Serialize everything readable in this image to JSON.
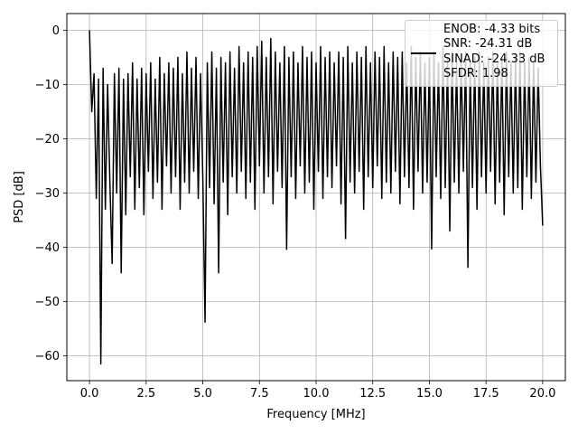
{
  "chart_data": {
    "type": "line",
    "x_label": "Frequency [MHz]",
    "y_label": "PSD [dB]",
    "xlim": [
      -1,
      21
    ],
    "ylim": [
      -64.58,
      3.08
    ],
    "xticks": [
      {
        "value": 0,
        "label": "0.0"
      },
      2.5,
      {
        "value": 5,
        "label": "5.0"
      },
      7.5,
      {
        "value": 10,
        "label": "10.0"
      },
      12.5,
      {
        "value": 15,
        "label": "15.0"
      },
      17.5,
      {
        "value": 20,
        "label": "20.0"
      }
    ],
    "yticks": [
      0,
      {
        "value": -10,
        "label": "−10"
      },
      {
        "value": -20,
        "label": "−20"
      },
      {
        "value": -30,
        "label": "−30"
      },
      {
        "value": -40,
        "label": "−40"
      },
      {
        "value": -50,
        "label": "−50"
      },
      {
        "value": -60,
        "label": "−60"
      }
    ],
    "grid": true,
    "legend_position": "upper-right",
    "x": [
      0,
      0.1,
      0.2,
      0.3,
      0.4,
      0.5,
      0.6,
      0.7,
      0.8,
      0.9,
      1,
      1.1,
      1.2,
      1.3,
      1.4,
      1.5,
      1.6,
      1.7,
      1.8,
      1.9,
      2,
      2.1,
      2.2,
      2.3,
      2.4,
      2.5,
      2.6,
      2.7,
      2.8,
      2.9,
      3,
      3.1,
      3.2,
      3.3,
      3.4,
      3.5,
      3.6,
      3.7,
      3.8,
      3.9,
      4,
      4.1,
      4.2,
      4.3,
      4.4,
      4.5,
      4.6,
      4.7,
      4.8,
      4.9,
      5,
      5.1,
      5.2,
      5.3,
      5.4,
      5.5,
      5.6,
      5.7,
      5.8,
      5.9,
      6,
      6.1,
      6.2,
      6.3,
      6.4,
      6.5,
      6.6,
      6.7,
      6.8,
      6.9,
      7,
      7.1,
      7.2,
      7.3,
      7.4,
      7.5,
      7.6,
      7.7,
      7.8,
      7.9,
      8,
      8.1,
      8.2,
      8.3,
      8.4,
      8.5,
      8.6,
      8.7,
      8.8,
      8.9,
      9,
      9.1,
      9.2,
      9.3,
      9.4,
      9.5,
      9.6,
      9.7,
      9.8,
      9.9,
      10,
      10.1,
      10.2,
      10.3,
      10.4,
      10.5,
      10.6,
      10.7,
      10.8,
      10.9,
      11,
      11.1,
      11.2,
      11.3,
      11.4,
      11.5,
      11.6,
      11.7,
      11.8,
      11.9,
      12,
      12.1,
      12.2,
      12.3,
      12.4,
      12.5,
      12.6,
      12.7,
      12.8,
      12.9,
      13,
      13.1,
      13.2,
      13.3,
      13.4,
      13.5,
      13.6,
      13.7,
      13.8,
      13.9,
      14,
      14.1,
      14.2,
      14.3,
      14.4,
      14.5,
      14.6,
      14.7,
      14.8,
      14.9,
      15,
      15.1,
      15.2,
      15.3,
      15.4,
      15.5,
      15.6,
      15.7,
      15.8,
      15.9,
      16,
      16.1,
      16.2,
      16.3,
      16.4,
      16.5,
      16.6,
      16.7,
      16.8,
      16.9,
      17,
      17.1,
      17.2,
      17.3,
      17.4,
      17.5,
      17.6,
      17.7,
      17.8,
      17.9,
      18,
      18.1,
      18.2,
      18.3,
      18.4,
      18.5,
      18.6,
      18.7,
      18.8,
      18.9,
      19,
      19.1,
      19.2,
      19.3,
      19.4,
      19.5,
      19.6,
      19.7,
      19.8,
      19.9,
      20
    ],
    "series": [
      {
        "name": "ENOB: -4.33 bits\nSNR: -24.31 dB\nSINAD: -24.33 dB\nSFDR: 1.98",
        "color": "#000000",
        "values": [
          0,
          -15,
          -8,
          -31,
          -9,
          -61.5,
          -7,
          -33,
          -10,
          -28,
          -43,
          -8,
          -30,
          -7,
          -44.7,
          -9,
          -34,
          -8,
          -27,
          -6,
          -33,
          -9,
          -29,
          -7,
          -34,
          -8,
          -26,
          -6,
          -31,
          -9,
          -28,
          -5,
          -33,
          -8,
          -25,
          -6,
          -30,
          -7,
          -27,
          -5,
          -33,
          -8,
          -28,
          -4,
          -30,
          -7,
          -26,
          -5,
          -31,
          -8,
          -27,
          -53.8,
          -6,
          -29,
          -4,
          -32,
          -7,
          -44.7,
          -5,
          -28,
          -6,
          -34,
          -4,
          -27,
          -7,
          -30,
          -3,
          -26,
          -6,
          -31,
          -4,
          -28,
          -5,
          -33,
          -3,
          -25,
          -2,
          -30,
          -5,
          -27,
          -1.5,
          -32,
          -4,
          -26,
          -6,
          -29,
          -3,
          -40.4,
          -5,
          -27,
          -4,
          -31,
          -6,
          -25,
          -3,
          -30,
          -5,
          -28,
          -4,
          -33,
          -6,
          -26,
          -3,
          -31,
          -5,
          -27,
          -4,
          -29,
          -6,
          -25,
          -4,
          -32,
          -5,
          -38.4,
          -3,
          -28,
          -6,
          -30,
          -4,
          -26,
          -5,
          -33,
          -3,
          -27,
          -6,
          -29,
          -4,
          -25,
          -5,
          -31,
          -3,
          -28,
          -6,
          -30,
          -4,
          -26,
          -5,
          -32,
          -4,
          -27,
          -6,
          -29,
          -3,
          -33,
          -5,
          -26,
          -4,
          -30,
          -6,
          -28,
          -5,
          -40.3,
          -4,
          -27,
          -6,
          -31,
          -3,
          -29,
          -5,
          -37,
          -4,
          -28,
          -6,
          -30,
          -5,
          -26,
          -4,
          -43.7,
          -6,
          -29,
          -5,
          -33,
          -4,
          -27,
          -6,
          -30,
          -5,
          -26,
          -4,
          -32,
          -6,
          -28,
          -5,
          -34,
          -4,
          -27,
          -6,
          -30,
          -5,
          -29,
          -4,
          -33,
          -6,
          -27,
          -5,
          -31,
          -6,
          -28,
          -7,
          -25,
          -36
        ]
      }
    ]
  }
}
